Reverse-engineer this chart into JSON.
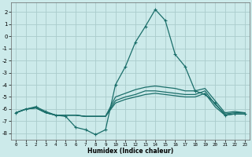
{
  "bg_color": "#cceaea",
  "grid_color": "#aacccc",
  "line_color": "#1a6e6a",
  "xlabel": "Humidex (Indice chaleur)",
  "ylim": [
    -8.5,
    2.8
  ],
  "xlim": [
    -0.5,
    23.5
  ],
  "yticks": [
    2,
    1,
    0,
    -1,
    -2,
    -3,
    -4,
    -5,
    -6,
    -7,
    -8
  ],
  "xticks": [
    0,
    1,
    2,
    3,
    4,
    5,
    6,
    7,
    8,
    9,
    10,
    11,
    12,
    13,
    14,
    15,
    16,
    17,
    18,
    19,
    20,
    21,
    22,
    23
  ],
  "series": [
    {
      "x": [
        0,
        1,
        2,
        3,
        4,
        5,
        6,
        7,
        8,
        9,
        10,
        11,
        12,
        13,
        14,
        15,
        16,
        17,
        18,
        19,
        20,
        21,
        22,
        23
      ],
      "y": [
        -6.3,
        -6.0,
        -5.8,
        -6.2,
        -6.5,
        -6.6,
        -7.5,
        -7.7,
        -8.1,
        -7.7,
        -4.0,
        -2.5,
        -0.5,
        0.8,
        2.2,
        1.3,
        -1.5,
        -2.5,
        -4.5,
        -4.8,
        -5.5,
        -6.5,
        -6.4,
        -6.4
      ],
      "marker": "+",
      "markersize": 3,
      "linestyle": "-",
      "linewidth": 0.9
    },
    {
      "x": [
        0,
        1,
        2,
        3,
        4,
        5,
        6,
        7,
        8,
        9,
        10,
        11,
        12,
        13,
        14,
        15,
        16,
        17,
        18,
        19,
        20,
        21,
        22,
        23
      ],
      "y": [
        -6.3,
        -6.0,
        -5.9,
        -6.3,
        -6.5,
        -6.5,
        -6.5,
        -6.6,
        -6.6,
        -6.6,
        -5.0,
        -4.7,
        -4.4,
        -4.2,
        -4.1,
        -4.2,
        -4.3,
        -4.5,
        -4.5,
        -4.3,
        -5.3,
        -6.3,
        -6.2,
        -6.3
      ],
      "marker": null,
      "markersize": 0,
      "linestyle": "-",
      "linewidth": 0.9
    },
    {
      "x": [
        0,
        1,
        2,
        3,
        4,
        5,
        6,
        7,
        8,
        9,
        10,
        11,
        12,
        13,
        14,
        15,
        16,
        17,
        18,
        19,
        20,
        21,
        22,
        23
      ],
      "y": [
        -6.3,
        -6.0,
        -5.9,
        -6.3,
        -6.5,
        -6.5,
        -6.5,
        -6.6,
        -6.6,
        -6.6,
        -5.3,
        -5.0,
        -4.8,
        -4.5,
        -4.5,
        -4.6,
        -4.7,
        -4.8,
        -4.8,
        -4.5,
        -5.6,
        -6.4,
        -6.3,
        -6.3
      ],
      "marker": null,
      "markersize": 0,
      "linestyle": "-",
      "linewidth": 0.9
    },
    {
      "x": [
        0,
        1,
        2,
        3,
        4,
        5,
        6,
        7,
        8,
        9,
        10,
        11,
        12,
        13,
        14,
        15,
        16,
        17,
        18,
        19,
        20,
        21,
        22,
        23
      ],
      "y": [
        -6.3,
        -6.0,
        -5.9,
        -6.3,
        -6.5,
        -6.5,
        -6.5,
        -6.6,
        -6.6,
        -6.6,
        -5.5,
        -5.2,
        -5.0,
        -4.8,
        -4.7,
        -4.8,
        -4.9,
        -5.0,
        -5.0,
        -4.7,
        -5.8,
        -6.5,
        -6.4,
        -6.4
      ],
      "marker": null,
      "markersize": 0,
      "linestyle": "-",
      "linewidth": 0.9
    }
  ]
}
